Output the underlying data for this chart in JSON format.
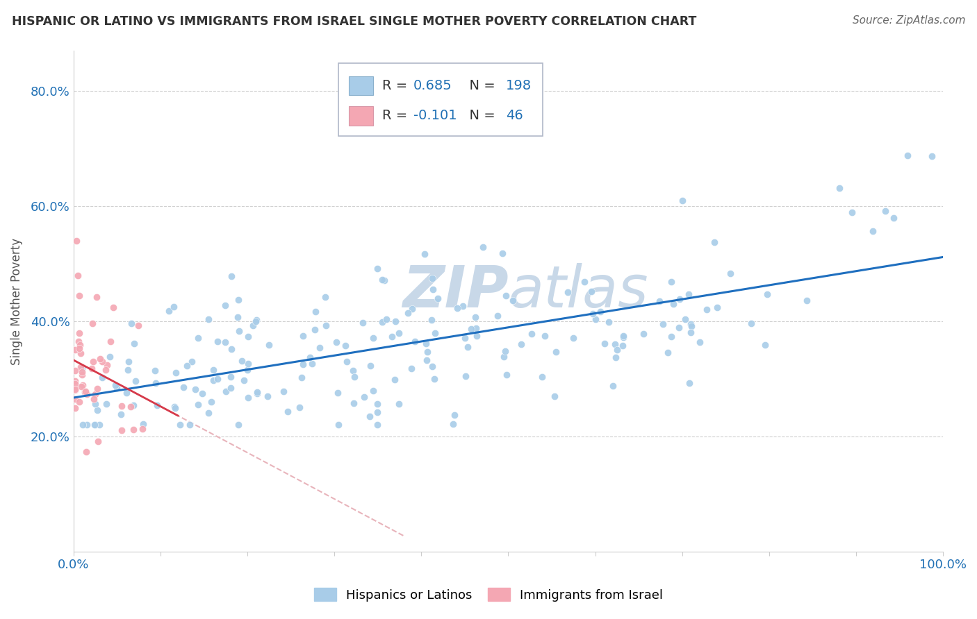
{
  "title": "HISPANIC OR LATINO VS IMMIGRANTS FROM ISRAEL SINGLE MOTHER POVERTY CORRELATION CHART",
  "source": "Source: ZipAtlas.com",
  "ylabel": "Single Mother Poverty",
  "xlim": [
    0,
    1.0
  ],
  "ylim": [
    0,
    0.87
  ],
  "yticks": [
    0.2,
    0.4,
    0.6,
    0.8
  ],
  "yticklabels": [
    "20.0%",
    "40.0%",
    "60.0%",
    "80.0%"
  ],
  "xtick_show": [
    0.0,
    1.0
  ],
  "blue_R": 0.685,
  "blue_N": 198,
  "pink_R": -0.101,
  "pink_N": 46,
  "blue_color": "#a8cce8",
  "pink_color": "#f4a7b3",
  "blue_line_color": "#1f6fbf",
  "pink_line_color": "#d63a4a",
  "pink_dash_color": "#e8b4bb",
  "watermark_color": "#c8d8e8",
  "legend_label1": "Hispanics or Latinos",
  "legend_label2": "Immigrants from Israel",
  "background_color": "#ffffff",
  "grid_color": "#d0d0d0",
  "title_color": "#333333",
  "tick_color": "#2171b5",
  "ylabel_color": "#555555",
  "legend_R_N_color": "#2171b5",
  "legend_R_label_color": "#333333"
}
